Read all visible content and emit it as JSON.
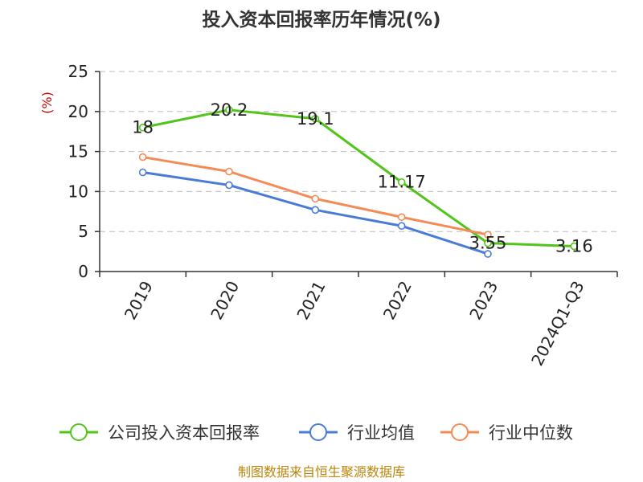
{
  "chart_data": {
    "type": "line",
    "title": "投入资本回报率历年情况(%)",
    "ylabel": "(%)",
    "xlabel": "",
    "categories": [
      "2019",
      "2020",
      "2021",
      "2022",
      "2023",
      "2024Q1-Q3"
    ],
    "ylim": [
      0,
      25
    ],
    "yticks": [
      0,
      5,
      10,
      15,
      20,
      25
    ],
    "grid": true,
    "legend_position": "bottom",
    "series": [
      {
        "name": "公司投入资本回报率",
        "color": "#52c41a",
        "values": [
          18,
          20.2,
          19.1,
          11.17,
          3.55,
          3.16
        ],
        "labels": [
          "18",
          "20.2",
          "19.1",
          "11.17",
          "3.55",
          "3.16"
        ]
      },
      {
        "name": "行业均值",
        "color": "#4a7bd6",
        "values": [
          12.4,
          10.8,
          7.7,
          5.7,
          2.2,
          null
        ],
        "labels": []
      },
      {
        "name": "行业中位数",
        "color": "#f48a55",
        "values": [
          14.3,
          12.5,
          9.1,
          6.8,
          4.6,
          null
        ],
        "labels": []
      }
    ]
  },
  "footer": {
    "source_text": "制图数据来自恒生聚源数据库"
  }
}
